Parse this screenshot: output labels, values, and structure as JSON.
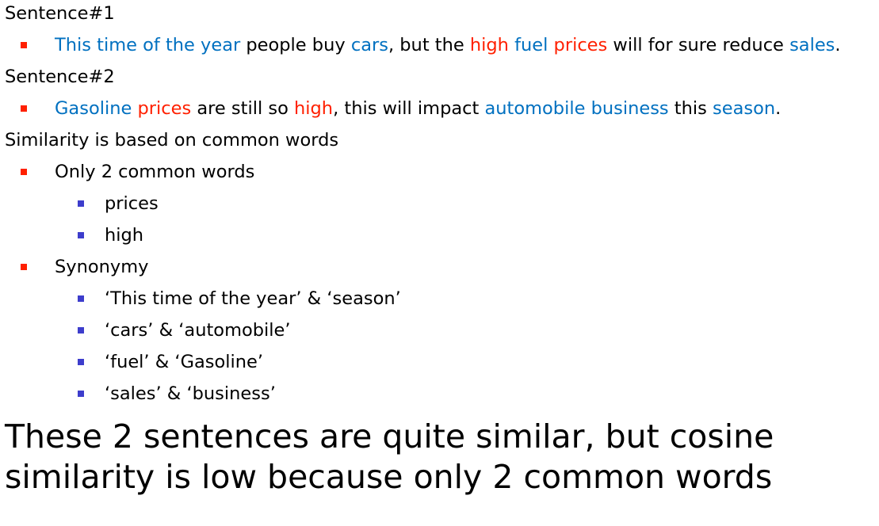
{
  "sentence1": {
    "heading": "Sentence#1",
    "segments": [
      {
        "text": "This time of the year",
        "color": "#0070c0"
      },
      {
        "text": " people buy ",
        "color": "#000000"
      },
      {
        "text": "cars",
        "color": "#0070c0"
      },
      {
        "text": ", but the ",
        "color": "#000000"
      },
      {
        "text": "high ",
        "color": "#ff2000"
      },
      {
        "text": "fuel ",
        "color": "#0070c0"
      },
      {
        "text": "prices",
        "color": "#ff2000"
      },
      {
        "text": " will for sure reduce ",
        "color": "#000000"
      },
      {
        "text": "sales",
        "color": "#0070c0"
      },
      {
        "text": ".",
        "color": "#000000"
      }
    ]
  },
  "sentence2": {
    "heading": "Sentence#2",
    "segments": [
      {
        "text": "Gasoline ",
        "color": "#0070c0"
      },
      {
        "text": "prices",
        "color": "#ff2000"
      },
      {
        "text": " are still so ",
        "color": "#000000"
      },
      {
        "text": "high",
        "color": "#ff2000"
      },
      {
        "text": ", this will impact ",
        "color": "#000000"
      },
      {
        "text": "automobile business",
        "color": "#0070c0"
      },
      {
        "text": " this ",
        "color": "#000000"
      },
      {
        "text": "season",
        "color": "#0070c0"
      },
      {
        "text": ".",
        "color": "#000000"
      }
    ]
  },
  "similarity": {
    "heading": "Similarity is based on common words",
    "bullets": [
      {
        "text": "Only 2 common words",
        "sub": [
          "prices",
          "high"
        ]
      },
      {
        "text": "Synonymy",
        "sub": [
          "‘This time of the year’ & ‘season’",
          "‘cars’ & ‘automobile’",
          "‘fuel’ & ‘Gasoline’",
          "‘sales’ & ‘business’"
        ]
      }
    ]
  },
  "conclusion": "These 2 sentences are quite similar, but cosine similarity is low because only 2 common words"
}
